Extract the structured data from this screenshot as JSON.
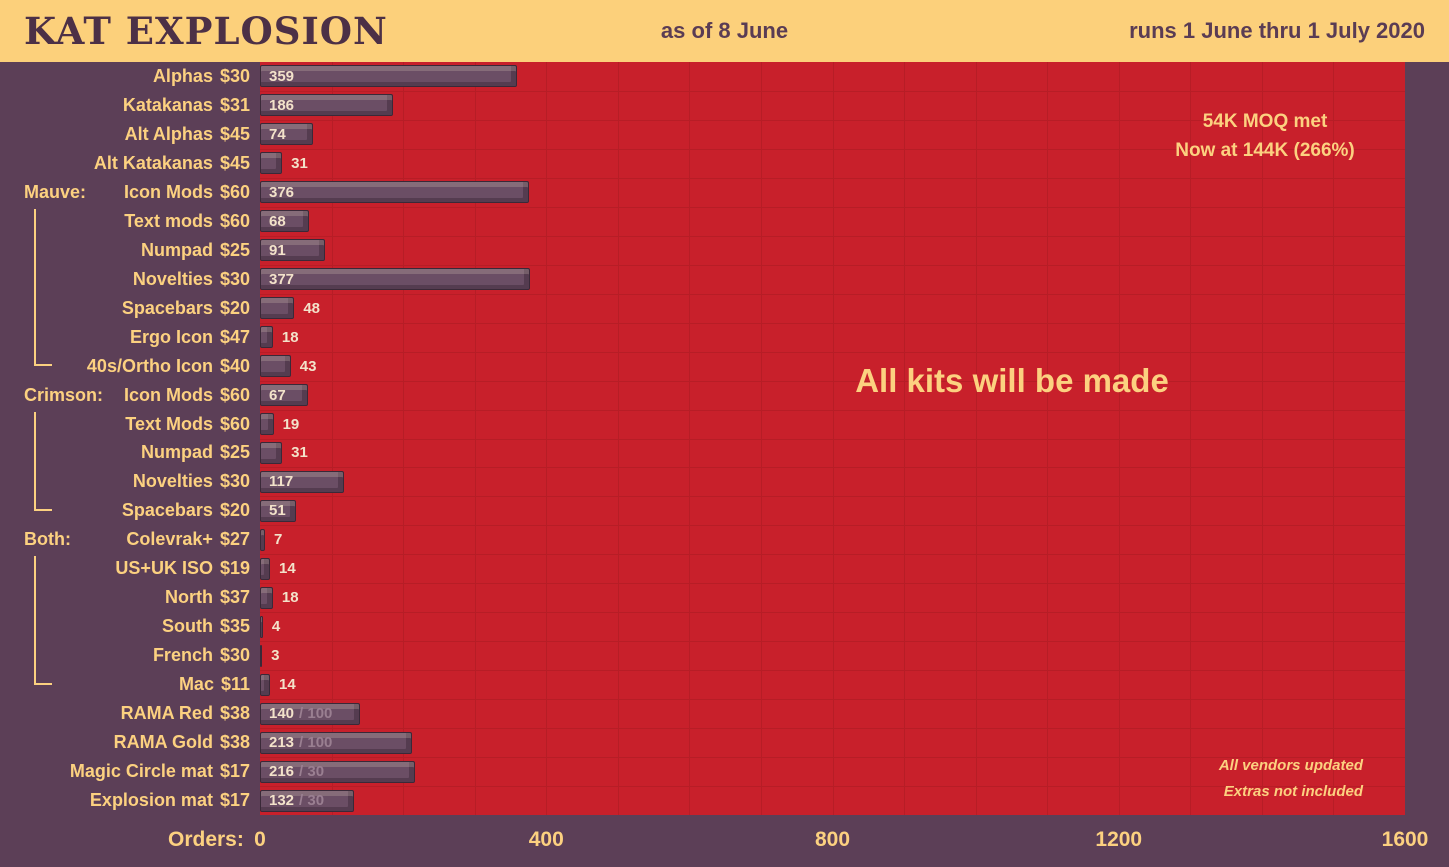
{
  "header": {
    "title": "KAT EXPLOSION",
    "as_of": "as of 8 June",
    "runs": "runs 1 June thru 1 July 2020"
  },
  "annotations": {
    "moq_line1": "54K MOQ met",
    "moq_line2": "Now at 144K (266%)",
    "center": "All kits will be made",
    "footnote1": "All vendors updated",
    "footnote2": "Extras not included"
  },
  "axis": {
    "label": "Orders:",
    "ticks": [
      0,
      400,
      800,
      1200,
      1600
    ]
  },
  "colors": {
    "header_bg": "#fcd07b",
    "header_text": "#5a3c54",
    "page_bg": "#5c3f57",
    "chart_bg": "#c8202b",
    "grid": "#b71d26",
    "bar_fill": "#6b4e65",
    "label_text": "#fcd180",
    "value_text": "#f3e2ca",
    "cap_text": "#9a7f91"
  },
  "chart_data": {
    "type": "bar",
    "orientation": "horizontal",
    "title": "KAT EXPLOSION",
    "xlabel": "Orders",
    "xlim": [
      0,
      1600
    ],
    "grid_interval": 100,
    "legend": "none",
    "rows": [
      {
        "group": "",
        "label": "Alphas",
        "price": "$30",
        "value": 359
      },
      {
        "group": "",
        "label": "Katakanas",
        "price": "$31",
        "value": 186
      },
      {
        "group": "",
        "label": "Alt Alphas",
        "price": "$45",
        "value": 74
      },
      {
        "group": "",
        "label": "Alt Katakanas",
        "price": "$45",
        "value": 31
      },
      {
        "group": "Mauve:",
        "label": "Icon Mods",
        "price": "$60",
        "value": 376
      },
      {
        "group": "",
        "label": "Text mods",
        "price": "$60",
        "value": 68
      },
      {
        "group": "",
        "label": "Numpad",
        "price": "$25",
        "value": 91
      },
      {
        "group": "",
        "label": "Novelties",
        "price": "$30",
        "value": 377
      },
      {
        "group": "",
        "label": "Spacebars",
        "price": "$20",
        "value": 48
      },
      {
        "group": "",
        "label": "Ergo Icon",
        "price": "$47",
        "value": 18
      },
      {
        "group": "",
        "label": "40s/Ortho Icon",
        "price": "$40",
        "value": 43
      },
      {
        "group": "Crimson:",
        "label": "Icon Mods",
        "price": "$60",
        "value": 67
      },
      {
        "group": "",
        "label": "Text Mods",
        "price": "$60",
        "value": 19
      },
      {
        "group": "",
        "label": "Numpad",
        "price": "$25",
        "value": 31
      },
      {
        "group": "",
        "label": "Novelties",
        "price": "$30",
        "value": 117
      },
      {
        "group": "",
        "label": "Spacebars",
        "price": "$20",
        "value": 51
      },
      {
        "group": "Both:",
        "label": "Colevrak+",
        "price": "$27",
        "value": 7
      },
      {
        "group": "",
        "label": "US+UK ISO",
        "price": "$19",
        "value": 14
      },
      {
        "group": "",
        "label": "North",
        "price": "$37",
        "value": 18
      },
      {
        "group": "",
        "label": "South",
        "price": "$35",
        "value": 4
      },
      {
        "group": "",
        "label": "French",
        "price": "$30",
        "value": 3
      },
      {
        "group": "",
        "label": "Mac",
        "price": "$11",
        "value": 14
      },
      {
        "group": "",
        "label": "RAMA Red",
        "price": "$38",
        "value": 140,
        "cap": 100
      },
      {
        "group": "",
        "label": "RAMA Gold",
        "price": "$38",
        "value": 213,
        "cap": 100
      },
      {
        "group": "",
        "label": "Magic Circle mat",
        "price": "$17",
        "value": 216,
        "cap": 30
      },
      {
        "group": "",
        "label": "Explosion mat",
        "price": "$17",
        "value": 132,
        "cap": 30
      }
    ],
    "brackets": [
      {
        "from_row": 4,
        "to_row": 10
      },
      {
        "from_row": 11,
        "to_row": 15
      },
      {
        "from_row": 16,
        "to_row": 21
      }
    ]
  }
}
